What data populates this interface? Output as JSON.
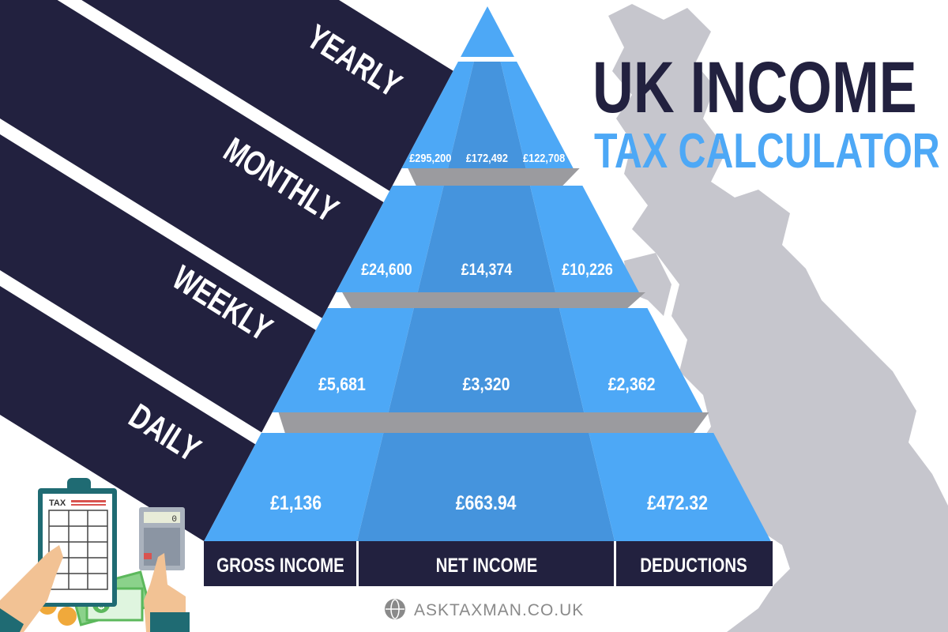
{
  "title": {
    "line1": "UK INCOME",
    "line2": "TAX CALCULATOR"
  },
  "periods": [
    {
      "label": "YEARLY",
      "gross": "£295,200",
      "net": "£172,492",
      "deductions": "£122,708"
    },
    {
      "label": "MONTHLY",
      "gross": "£24,600",
      "net": "£14,374",
      "deductions": "£10,226"
    },
    {
      "label": "WEEKLY",
      "gross": "£5,681",
      "net": "£3,320",
      "deductions": "£2,362"
    },
    {
      "label": "DAILY",
      "gross": "£1,136",
      "net": "£663.94",
      "deductions": "£472.32"
    }
  ],
  "columns": [
    "GROSS INCOME",
    "NET INCOME",
    "DEDUCTIONS"
  ],
  "footer": {
    "site": "ASKTAXMAN.CO.UK",
    "icon": "globe-icon"
  },
  "illustration": {
    "clipboard_text": "TAX",
    "calculator_display": "0"
  },
  "colors": {
    "navy": "#22213f",
    "blue_light": "#4da8f6",
    "blue_dark": "#4594dd",
    "separator": "#9b9b9f",
    "map": "#c6c6cd",
    "accent_blue": "#4da8f6"
  }
}
